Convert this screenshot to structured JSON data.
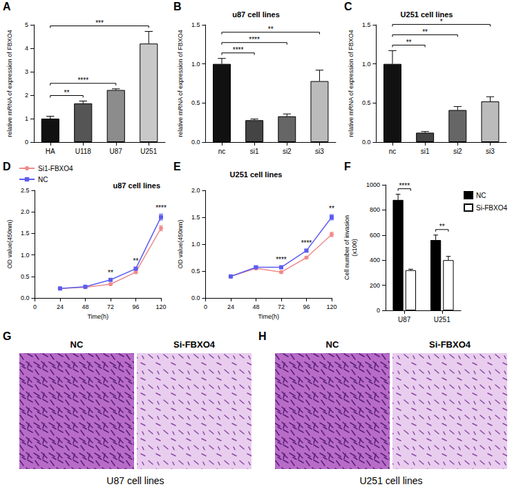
{
  "chart_data": [
    {
      "panel": "A",
      "type": "bar",
      "ylabel": "relative mRNA of expression of FBXO4",
      "categories": [
        "HA",
        "U118",
        "U87",
        "U251"
      ],
      "values": [
        1.0,
        1.65,
        2.22,
        4.2
      ],
      "errors": [
        0.1,
        0.1,
        0.05,
        0.52
      ],
      "colors": [
        "#111111",
        "#555555",
        "#8c8c8c",
        "#c8c8c8"
      ],
      "ylim": [
        0,
        5
      ],
      "yticks": [
        0,
        1,
        2,
        3,
        4,
        5
      ],
      "comparisons": [
        {
          "from": "HA",
          "to": "U118",
          "text": "**"
        },
        {
          "from": "HA",
          "to": "U87",
          "text": "****"
        },
        {
          "from": "HA",
          "to": "U251",
          "text": "***"
        }
      ]
    },
    {
      "panel": "B",
      "type": "bar",
      "title": "u87 cell lines",
      "ylabel": "relative mRNA of expression of FBXO4",
      "categories": [
        "nc",
        "si1",
        "si2",
        "si3"
      ],
      "values": [
        1.0,
        0.28,
        0.33,
        0.78
      ],
      "errors": [
        0.07,
        0.015,
        0.03,
        0.14
      ],
      "colors": [
        "#111111",
        "#444444",
        "#666666",
        "#bbbbbb"
      ],
      "ylim": [
        0,
        1.5
      ],
      "yticks": [
        {
          "value": 0,
          "label": "0.0"
        },
        0.5,
        {
          "value": 1,
          "label": "1.0"
        },
        1.5
      ],
      "comparisons": [
        {
          "from": "nc",
          "to": "si1",
          "text": "****"
        },
        {
          "from": "nc",
          "to": "si2",
          "text": "****"
        },
        {
          "from": "nc",
          "to": "si3",
          "text": "**"
        }
      ]
    },
    {
      "panel": "C",
      "type": "bar",
      "title": "U251 cell lines",
      "ylabel": "relative mRNA of expression of FBXO4",
      "categories": [
        "nc",
        "si1",
        "si2",
        "si3"
      ],
      "values": [
        1.0,
        0.12,
        0.41,
        0.52
      ],
      "errors": [
        0.17,
        0.015,
        0.045,
        0.06
      ],
      "colors": [
        "#111111",
        "#444444",
        "#666666",
        "#bbbbbb"
      ],
      "ylim": [
        0,
        1.5
      ],
      "yticks": [
        {
          "value": 0,
          "label": "0.0"
        },
        0.5,
        {
          "value": 1,
          "label": "1.0"
        },
        1.5
      ],
      "comparisons": [
        {
          "from": "nc",
          "to": "si1",
          "text": "**"
        },
        {
          "from": "nc",
          "to": "si2",
          "text": "**"
        },
        {
          "from": "nc",
          "to": "si3",
          "text": "*"
        }
      ]
    },
    {
      "panel": "D",
      "type": "line",
      "title": "u87 cell lines",
      "xlabel": "Time(h)",
      "ylabel": "OD value(450nm)",
      "legend": "upper left",
      "x": [
        24,
        48,
        72,
        96,
        120
      ],
      "xlim": [
        0,
        120
      ],
      "xticks": [
        0,
        24,
        48,
        72,
        96,
        120
      ],
      "ylim": [
        0,
        2.5
      ],
      "yticks": [
        {
          "value": 0,
          "label": "0.0"
        },
        0.5,
        {
          "value": 1,
          "label": "1.0"
        },
        1.5,
        {
          "value": 2,
          "label": "2.0"
        },
        2.5
      ],
      "series": [
        {
          "name": "Si1-FBXO4",
          "color": "#f08a8a",
          "marker": "circle",
          "values": [
            0.22,
            0.25,
            0.32,
            0.6,
            1.62
          ],
          "errors": [
            0.01,
            0.01,
            0.02,
            0.03,
            0.06
          ]
        },
        {
          "name": "NC",
          "color": "#5c5cf0",
          "marker": "square",
          "values": [
            0.22,
            0.26,
            0.42,
            0.68,
            1.88
          ],
          "errors": [
            0.01,
            0.01,
            0.02,
            0.03,
            0.07
          ]
        }
      ],
      "annotations": [
        {
          "x": 72,
          "text": "**"
        },
        {
          "x": 96,
          "text": "**"
        },
        {
          "x": 120,
          "text": "****"
        }
      ]
    },
    {
      "panel": "E",
      "type": "line",
      "title": "U251 cell lines",
      "xlabel": "Time(h)",
      "ylabel": "OD value(450nm)",
      "x": [
        24,
        48,
        72,
        96,
        120
      ],
      "xlim": [
        0,
        120
      ],
      "xticks": [
        0,
        24,
        48,
        72,
        96,
        120
      ],
      "ylim": [
        0,
        2
      ],
      "yticks": [
        {
          "value": 0,
          "label": "0.0"
        },
        0.5,
        {
          "value": 1,
          "label": "1.0"
        },
        1.5,
        {
          "value": 2,
          "label": "2.0"
        }
      ],
      "series": [
        {
          "name": "Si1-FBXO4",
          "color": "#f08a8a",
          "marker": "circle",
          "values": [
            0.4,
            0.55,
            0.48,
            0.75,
            1.18
          ],
          "errors": [
            0.01,
            0.02,
            0.02,
            0.02,
            0.04
          ]
        },
        {
          "name": "NC",
          "color": "#5c5cf0",
          "marker": "square",
          "values": [
            0.4,
            0.57,
            0.57,
            0.88,
            1.5
          ],
          "errors": [
            0.01,
            0.02,
            0.02,
            0.02,
            0.05
          ]
        }
      ],
      "annotations": [
        {
          "x": 72,
          "text": "****"
        },
        {
          "x": 96,
          "text": "****"
        },
        {
          "x": 120,
          "text": "**"
        }
      ]
    },
    {
      "panel": "F",
      "type": "bar",
      "ylabel": "Cell number of invasion\n(x100)",
      "legend": "upper right",
      "categories": [
        "U87",
        "U251"
      ],
      "series": [
        {
          "name": "NC",
          "color": "#000000",
          "values": [
            880,
            560
          ],
          "errors": [
            45,
            40
          ]
        },
        {
          "name": "Si-FBXO4",
          "color": "#ffffff",
          "values": [
            320,
            400
          ],
          "errors": [
            8,
            30
          ]
        }
      ],
      "ylim": [
        0,
        1000
      ],
      "yticks": [
        0,
        200,
        400,
        600,
        800,
        1000
      ],
      "comparisons": [
        {
          "category": "U87",
          "text": "****"
        },
        {
          "category": "U251",
          "text": "**"
        }
      ]
    }
  ],
  "micrographs": [
    {
      "panel": "G",
      "caption": "U87 cell lines",
      "labels": [
        "NC",
        "Si-FBXO4"
      ]
    },
    {
      "panel": "H",
      "caption": "U251 cell lines",
      "labels": [
        "NC",
        "Si-FBXO4"
      ]
    }
  ]
}
